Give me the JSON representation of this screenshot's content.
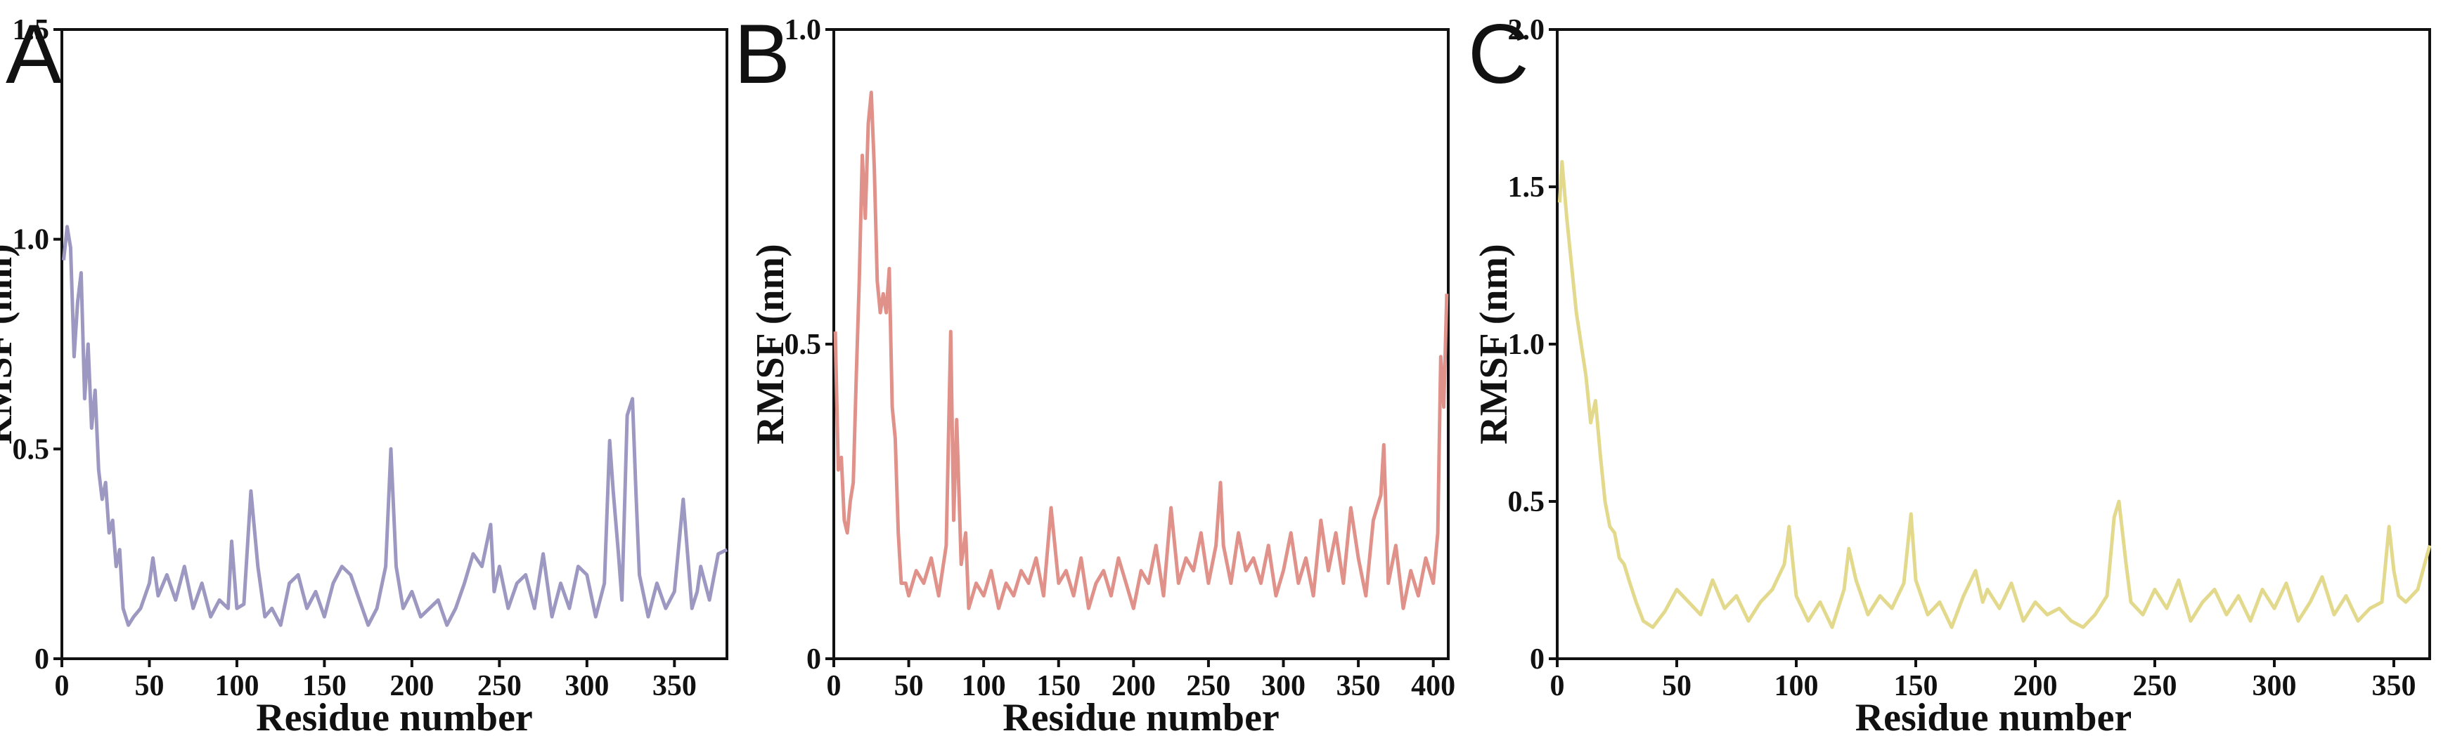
{
  "chart_data": [
    {
      "panel": "A",
      "type": "line",
      "xlabel": "Residue number",
      "ylabel": "RMSF (nm)",
      "xlim": [
        0,
        380
      ],
      "ylim": [
        0,
        1.5
      ],
      "xticks": [
        "0",
        "50",
        "100",
        "150",
        "200",
        "250",
        "300",
        "350"
      ],
      "yticks": [
        "0",
        "0.5",
        "1.0",
        "1.5"
      ],
      "color": "#9d98c2",
      "series": [
        {
          "x": [
            1,
            3,
            5,
            7,
            9,
            11,
            13,
            15,
            17,
            19,
            21,
            23,
            25,
            27,
            29,
            31,
            33,
            35,
            38,
            41,
            45,
            50,
            52,
            55,
            60,
            65,
            70,
            75,
            80,
            85,
            90,
            95,
            97,
            100,
            104,
            108,
            112,
            116,
            120,
            125,
            130,
            135,
            140,
            145,
            150,
            155,
            160,
            165,
            170,
            175,
            180,
            185,
            188,
            191,
            195,
            200,
            205,
            210,
            215,
            220,
            225,
            230,
            235,
            240,
            245,
            247,
            250,
            255,
            260,
            265,
            270,
            275,
            280,
            285,
            290,
            295,
            300,
            305,
            310,
            313,
            315,
            318,
            320,
            323,
            326,
            328,
            330,
            335,
            340,
            345,
            350,
            355,
            360,
            363,
            365,
            370,
            375,
            380
          ],
          "y": [
            0.95,
            1.03,
            0.98,
            0.72,
            0.85,
            0.92,
            0.62,
            0.75,
            0.55,
            0.64,
            0.45,
            0.38,
            0.42,
            0.3,
            0.33,
            0.22,
            0.26,
            0.12,
            0.08,
            0.1,
            0.12,
            0.18,
            0.24,
            0.15,
            0.2,
            0.14,
            0.22,
            0.12,
            0.18,
            0.1,
            0.14,
            0.12,
            0.28,
            0.12,
            0.13,
            0.4,
            0.22,
            0.1,
            0.12,
            0.08,
            0.18,
            0.2,
            0.12,
            0.16,
            0.1,
            0.18,
            0.22,
            0.2,
            0.14,
            0.08,
            0.12,
            0.22,
            0.5,
            0.22,
            0.12,
            0.16,
            0.1,
            0.12,
            0.14,
            0.08,
            0.12,
            0.18,
            0.25,
            0.22,
            0.32,
            0.16,
            0.22,
            0.12,
            0.18,
            0.2,
            0.12,
            0.25,
            0.1,
            0.18,
            0.12,
            0.22,
            0.2,
            0.1,
            0.18,
            0.52,
            0.4,
            0.25,
            0.14,
            0.58,
            0.62,
            0.4,
            0.2,
            0.1,
            0.18,
            0.12,
            0.16,
            0.38,
            0.12,
            0.16,
            0.22,
            0.14,
            0.25,
            0.26
          ]
        }
      ]
    },
    {
      "panel": "B",
      "type": "line",
      "xlabel": "Residue number",
      "ylabel": "RMSF (nm)",
      "xlim": [
        0,
        410
      ],
      "ylim": [
        0,
        1.0
      ],
      "xticks": [
        "0",
        "50",
        "100",
        "150",
        "200",
        "250",
        "300",
        "350",
        "400"
      ],
      "yticks": [
        "0",
        "0.5",
        "1.0"
      ],
      "color": "#e0928a",
      "series": [
        {
          "x": [
            1,
            3,
            5,
            7,
            9,
            11,
            13,
            15,
            17,
            19,
            21,
            23,
            25,
            27,
            29,
            31,
            33,
            35,
            37,
            39,
            41,
            43,
            45,
            48,
            50,
            55,
            60,
            65,
            70,
            75,
            78,
            80,
            82,
            85,
            88,
            90,
            95,
            100,
            105,
            110,
            115,
            120,
            125,
            130,
            135,
            140,
            145,
            150,
            155,
            160,
            165,
            170,
            175,
            180,
            185,
            190,
            195,
            200,
            205,
            210,
            215,
            220,
            225,
            230,
            235,
            240,
            245,
            250,
            255,
            258,
            260,
            265,
            270,
            275,
            280,
            285,
            290,
            295,
            300,
            305,
            310,
            315,
            320,
            325,
            330,
            335,
            340,
            345,
            350,
            355,
            360,
            365,
            367,
            370,
            375,
            380,
            385,
            390,
            395,
            400,
            403,
            405,
            407,
            409
          ],
          "y": [
            0.52,
            0.3,
            0.32,
            0.22,
            0.2,
            0.25,
            0.28,
            0.45,
            0.6,
            0.8,
            0.7,
            0.85,
            0.9,
            0.78,
            0.6,
            0.55,
            0.58,
            0.55,
            0.62,
            0.4,
            0.35,
            0.2,
            0.12,
            0.12,
            0.1,
            0.14,
            0.12,
            0.16,
            0.1,
            0.18,
            0.52,
            0.22,
            0.38,
            0.15,
            0.2,
            0.08,
            0.12,
            0.1,
            0.14,
            0.08,
            0.12,
            0.1,
            0.14,
            0.12,
            0.16,
            0.1,
            0.24,
            0.12,
            0.14,
            0.1,
            0.16,
            0.08,
            0.12,
            0.14,
            0.1,
            0.16,
            0.12,
            0.08,
            0.14,
            0.12,
            0.18,
            0.1,
            0.24,
            0.12,
            0.16,
            0.14,
            0.2,
            0.12,
            0.18,
            0.28,
            0.18,
            0.12,
            0.2,
            0.14,
            0.16,
            0.12,
            0.18,
            0.1,
            0.14,
            0.2,
            0.12,
            0.16,
            0.1,
            0.22,
            0.14,
            0.2,
            0.12,
            0.24,
            0.16,
            0.1,
            0.22,
            0.26,
            0.34,
            0.12,
            0.18,
            0.08,
            0.14,
            0.1,
            0.16,
            0.12,
            0.2,
            0.48,
            0.4,
            0.58
          ]
        }
      ]
    },
    {
      "panel": "C",
      "type": "line",
      "xlabel": "Residue number",
      "ylabel": "RMSF (nm)",
      "xlim": [
        0,
        365
      ],
      "ylim": [
        0,
        2.0
      ],
      "xticks": [
        "0",
        "50",
        "100",
        "150",
        "200",
        "250",
        "300",
        "350"
      ],
      "yticks": [
        "0",
        "0.5",
        "1.0",
        "1.5",
        "2.0"
      ],
      "color": "#e3d98c",
      "series": [
        {
          "x": [
            1,
            2,
            4,
            6,
            8,
            10,
            12,
            14,
            16,
            18,
            20,
            22,
            24,
            26,
            28,
            30,
            33,
            36,
            40,
            45,
            50,
            55,
            60,
            65,
            70,
            75,
            80,
            85,
            90,
            95,
            97,
            100,
            105,
            110,
            115,
            120,
            122,
            125,
            130,
            135,
            140,
            145,
            148,
            150,
            155,
            160,
            165,
            170,
            175,
            178,
            180,
            185,
            190,
            195,
            200,
            205,
            210,
            215,
            220,
            225,
            230,
            233,
            235,
            238,
            240,
            245,
            250,
            255,
            260,
            265,
            270,
            275,
            280,
            285,
            290,
            295,
            300,
            305,
            310,
            315,
            320,
            325,
            330,
            335,
            340,
            345,
            348,
            350,
            352,
            355,
            360,
            365
          ],
          "y": [
            1.45,
            1.58,
            1.4,
            1.25,
            1.1,
            1.0,
            0.9,
            0.75,
            0.82,
            0.65,
            0.5,
            0.42,
            0.4,
            0.32,
            0.3,
            0.25,
            0.18,
            0.12,
            0.1,
            0.15,
            0.22,
            0.18,
            0.14,
            0.25,
            0.16,
            0.2,
            0.12,
            0.18,
            0.22,
            0.3,
            0.42,
            0.2,
            0.12,
            0.18,
            0.1,
            0.22,
            0.35,
            0.25,
            0.14,
            0.2,
            0.16,
            0.24,
            0.46,
            0.25,
            0.14,
            0.18,
            0.1,
            0.2,
            0.28,
            0.18,
            0.22,
            0.16,
            0.24,
            0.12,
            0.18,
            0.14,
            0.16,
            0.12,
            0.1,
            0.14,
            0.2,
            0.45,
            0.5,
            0.3,
            0.18,
            0.14,
            0.22,
            0.16,
            0.25,
            0.12,
            0.18,
            0.22,
            0.14,
            0.2,
            0.12,
            0.22,
            0.16,
            0.24,
            0.12,
            0.18,
            0.26,
            0.14,
            0.2,
            0.12,
            0.16,
            0.18,
            0.42,
            0.28,
            0.2,
            0.18,
            0.22,
            0.36
          ]
        }
      ]
    }
  ]
}
